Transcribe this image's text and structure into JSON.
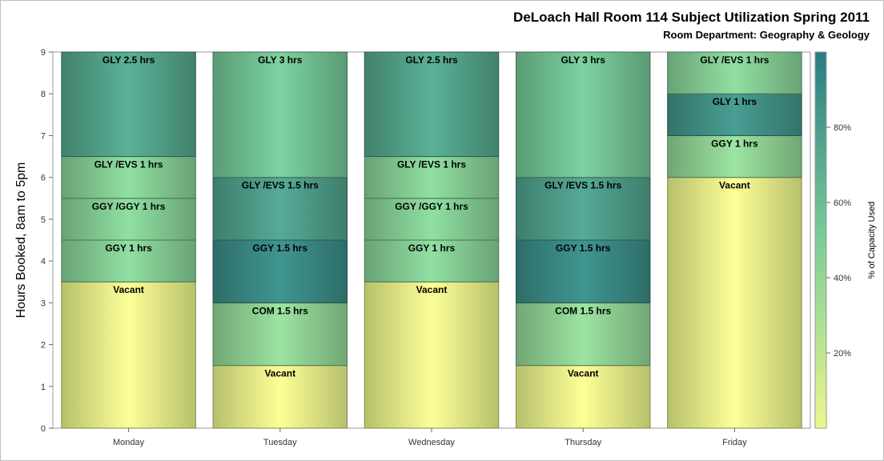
{
  "title": "DeLoach Hall Room 114 Subject Utilization Spring 2011",
  "subtitle": "Room Department:  Geography & Geology",
  "chart_data": {
    "type": "bar",
    "stacked": true,
    "ylabel": "Hours Booked, 8am to 5pm",
    "ylim": [
      0,
      9
    ],
    "yticks": [
      "0",
      "1",
      "2",
      "3",
      "4",
      "5",
      "6",
      "7",
      "8",
      "9"
    ],
    "colorbar": {
      "label": "% of Capacity Used",
      "ticks": [
        "20%",
        "40%",
        "60%",
        "80%"
      ],
      "tick_values": [
        20,
        40,
        60,
        80
      ],
      "range": [
        0,
        100
      ],
      "low_color": "#ecf68c",
      "mid_color": "#7ccd98",
      "high_color": "#2b7c82"
    },
    "categories": [
      "Monday",
      "Tuesday",
      "Wednesday",
      "Thursday",
      "Friday"
    ],
    "stacks": [
      [
        {
          "label": "Vacant",
          "hours": 3.5,
          "pct": 0
        },
        {
          "label": "GGY 1 hrs",
          "hours": 1,
          "pct": 45
        },
        {
          "label": "GGY /GGY 1 hrs",
          "hours": 1,
          "pct": 45
        },
        {
          "label": "GLY /EVS 1 hrs",
          "hours": 1,
          "pct": 45
        },
        {
          "label": "GLY 2.5 hrs",
          "hours": 2.5,
          "pct": 75
        }
      ],
      [
        {
          "label": "Vacant",
          "hours": 1.5,
          "pct": 0
        },
        {
          "label": "COM 1.5 hrs",
          "hours": 1.5,
          "pct": 40
        },
        {
          "label": "GGY 1.5 hrs",
          "hours": 1.5,
          "pct": 90
        },
        {
          "label": "GLY /EVS 1.5 hrs",
          "hours": 1.5,
          "pct": 78
        },
        {
          "label": "GLY 3 hrs",
          "hours": 3,
          "pct": 55
        }
      ],
      [
        {
          "label": "Vacant",
          "hours": 3.5,
          "pct": 0
        },
        {
          "label": "GGY 1 hrs",
          "hours": 1,
          "pct": 45
        },
        {
          "label": "GGY /GGY 1 hrs",
          "hours": 1,
          "pct": 45
        },
        {
          "label": "GLY /EVS 1 hrs",
          "hours": 1,
          "pct": 45
        },
        {
          "label": "GLY 2.5 hrs",
          "hours": 2.5,
          "pct": 75
        }
      ],
      [
        {
          "label": "Vacant",
          "hours": 1.5,
          "pct": 0
        },
        {
          "label": "COM 1.5 hrs",
          "hours": 1.5,
          "pct": 40
        },
        {
          "label": "GGY 1.5 hrs",
          "hours": 1.5,
          "pct": 90
        },
        {
          "label": "GLY /EVS 1.5 hrs",
          "hours": 1.5,
          "pct": 78
        },
        {
          "label": "GLY 3 hrs",
          "hours": 3,
          "pct": 55
        }
      ],
      [
        {
          "label": "Vacant",
          "hours": 6,
          "pct": 0
        },
        {
          "label": "GGY 1 hrs",
          "hours": 1,
          "pct": 40
        },
        {
          "label": "GLY 1 hrs",
          "hours": 1,
          "pct": 85
        },
        {
          "label": "GLY /EVS 1 hrs",
          "hours": 1,
          "pct": 45
        }
      ]
    ]
  }
}
